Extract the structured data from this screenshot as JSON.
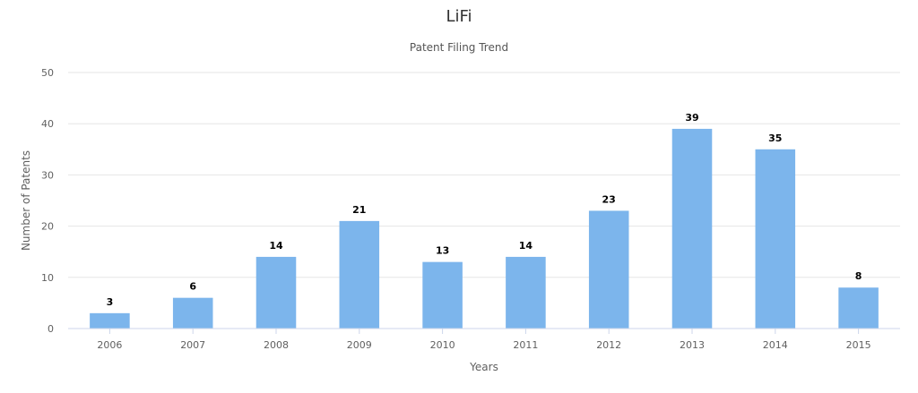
{
  "chart_data": {
    "type": "bar",
    "title": "LiFi",
    "subtitle": "Patent Filing Trend",
    "xlabel": "Years",
    "ylabel": "Number of Patents",
    "categories": [
      "2006",
      "2007",
      "2008",
      "2009",
      "2010",
      "2011",
      "2012",
      "2013",
      "2014",
      "2015"
    ],
    "values": [
      3,
      6,
      14,
      21,
      13,
      14,
      23,
      39,
      35,
      8
    ],
    "ylim": [
      0,
      50
    ],
    "yticks": [
      0,
      10,
      20,
      30,
      40,
      50
    ],
    "grid": true,
    "legend": "none",
    "bar_color": "#7cb5ec",
    "grid_color": "#e6e6e6",
    "axis_color": "#ccd6eb"
  }
}
